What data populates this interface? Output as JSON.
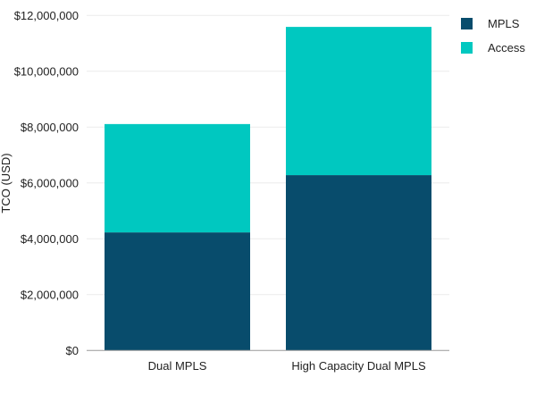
{
  "chart_data": {
    "type": "bar",
    "stacked": true,
    "title": "",
    "xlabel": "",
    "ylabel": "TCO (USD)",
    "ylim": [
      0,
      12000000
    ],
    "yticks": [
      0,
      2000000,
      4000000,
      6000000,
      8000000,
      10000000,
      12000000
    ],
    "ytick_labels": [
      "$0",
      "$2,000,000",
      "$4,000,000",
      "$6,000,000",
      "$8,000,000",
      "$10,000,000",
      "$12,000,000"
    ],
    "grid": true,
    "legend_position": "top-right",
    "categories": [
      "Dual MPLS",
      "High Capacity Dual MPLS"
    ],
    "series": [
      {
        "name": "MPLS",
        "color": "#084c6c",
        "values": [
          4230000,
          6280000
        ]
      },
      {
        "name": "Access",
        "color": "#00c8c0",
        "values": [
          3880000,
          5310000
        ]
      }
    ]
  }
}
